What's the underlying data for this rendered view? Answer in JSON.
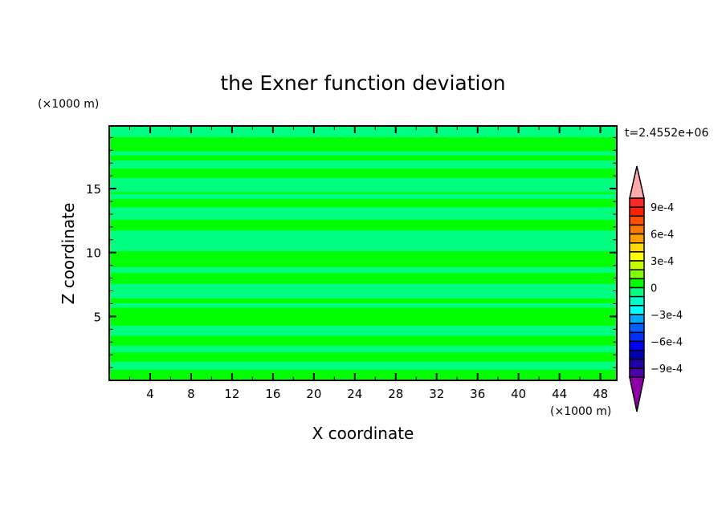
{
  "chart_data": {
    "type": "heatmap",
    "title": "the Exner function deviation",
    "xlabel": "X coordinate",
    "ylabel": "Z coordinate",
    "x_unit": "(×1000 m)",
    "y_unit": "(×1000 m)",
    "time_label": "t=2.4552e+06",
    "xlim": [
      0,
      49.6
    ],
    "ylim": [
      0,
      19.9
    ],
    "x_ticks": [
      4,
      8,
      12,
      16,
      20,
      24,
      28,
      32,
      36,
      40,
      44,
      48
    ],
    "x_minor_step": 2,
    "y_ticks": [
      5,
      10,
      15
    ],
    "y_minor_step": 1,
    "grid": false,
    "bands": [
      {
        "z": [
          19.02,
          19.9
        ],
        "level": [
          -0.0001,
          0
        ]
      },
      {
        "z": [
          17.92,
          19.02
        ],
        "level": [
          0,
          0.0001
        ]
      },
      {
        "z": [
          17.6,
          17.92
        ],
        "level": [
          -0.0001,
          0
        ]
      },
      {
        "z": [
          17.19,
          17.6
        ],
        "level": [
          0,
          0.0001
        ]
      },
      {
        "z": [
          16.56,
          17.19
        ],
        "level": [
          -0.0001,
          0
        ]
      },
      {
        "z": [
          15.83,
          16.56
        ],
        "level": [
          0,
          0.0001
        ]
      },
      {
        "z": [
          14.73,
          15.83
        ],
        "level": [
          -0.0001,
          0
        ]
      },
      {
        "z": [
          14.58,
          14.73
        ],
        "level": [
          0,
          0.0001
        ]
      },
      {
        "z": [
          14.17,
          14.58
        ],
        "level": [
          -0.0001,
          0
        ]
      },
      {
        "z": [
          13.54,
          14.17
        ],
        "level": [
          0,
          0.0001
        ]
      },
      {
        "z": [
          12.56,
          13.54
        ],
        "level": [
          -0.0001,
          0
        ]
      },
      {
        "z": [
          11.73,
          12.56
        ],
        "level": [
          0,
          0.0001
        ]
      },
      {
        "z": [
          10.1,
          11.73
        ],
        "level": [
          -0.0001,
          0
        ]
      },
      {
        "z": [
          8.85,
          10.1
        ],
        "level": [
          0,
          0.0001
        ]
      },
      {
        "z": [
          8.4,
          8.85
        ],
        "level": [
          -0.0001,
          0
        ]
      },
      {
        "z": [
          7.56,
          8.4
        ],
        "level": [
          0,
          0.0001
        ]
      },
      {
        "z": [
          6.4,
          7.56
        ],
        "level": [
          -0.0001,
          0
        ]
      },
      {
        "z": [
          6.04,
          6.4
        ],
        "level": [
          0,
          0.0001
        ]
      },
      {
        "z": [
          5.69,
          6.04
        ],
        "level": [
          -0.0001,
          0
        ]
      },
      {
        "z": [
          4.27,
          5.69
        ],
        "level": [
          0,
          0.0001
        ]
      },
      {
        "z": [
          3.48,
          4.27
        ],
        "level": [
          -0.0001,
          0
        ]
      },
      {
        "z": [
          2.71,
          3.48
        ],
        "level": [
          0,
          0.0001
        ]
      },
      {
        "z": [
          2.19,
          2.71
        ],
        "level": [
          -0.0001,
          0
        ]
      },
      {
        "z": [
          1.46,
          2.19
        ],
        "level": [
          0,
          0.0001
        ]
      },
      {
        "z": [
          0.83,
          1.46
        ],
        "level": [
          -0.0001,
          0
        ]
      },
      {
        "z": [
          0,
          0.83
        ],
        "level": [
          0,
          0.0001
        ]
      }
    ],
    "colorbar": {
      "min": -0.001,
      "max": 0.001,
      "step": 0.0001,
      "labels": [
        {
          "value": 0.0009,
          "text": "9e-4"
        },
        {
          "value": 0.0006,
          "text": "6e-4"
        },
        {
          "value": 0.0003,
          "text": "3e-4"
        },
        {
          "value": 0,
          "text": "0"
        },
        {
          "value": -0.0003,
          "text": "−3e-4"
        },
        {
          "value": -0.0006,
          "text": "−6e-4"
        },
        {
          "value": -0.0009,
          "text": "−9e-4"
        }
      ],
      "colors_top_to_bottom": [
        "#ff2828",
        "#ff2000",
        "#ff5000",
        "#ff7800",
        "#ffa000",
        "#ffd800",
        "#ffff00",
        "#c8ff00",
        "#80ff00",
        "#00ff00",
        "#00ff80",
        "#00ffc8",
        "#00ffff",
        "#00a8ff",
        "#0060ff",
        "#0030ff",
        "#0000ff",
        "#0000b0",
        "#2000a8",
        "#5000a8"
      ],
      "over_color": "#ffaaaa",
      "under_color": "#9000a8"
    }
  }
}
